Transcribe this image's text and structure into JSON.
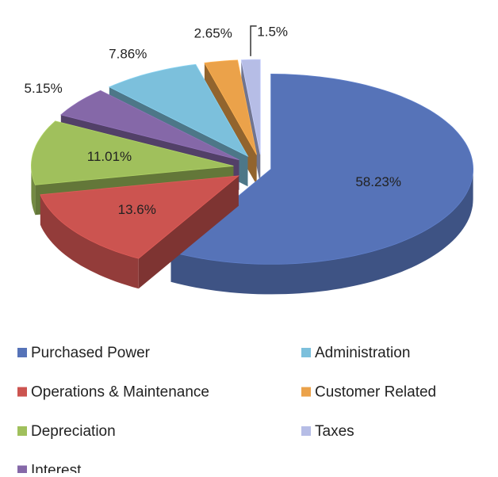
{
  "chart_data": {
    "type": "pie",
    "categories": [
      "Purchased Power",
      "Operations & Maintenance",
      "Depreciation",
      "Interest",
      "Administration",
      "Customer Related",
      "Taxes"
    ],
    "values": [
      58.23,
      13.6,
      11.01,
      5.15,
      7.86,
      2.65,
      1.5
    ],
    "value_labels": [
      "58.23%",
      "13.6%",
      "11.01%",
      "5.15%",
      "7.86%",
      "2.65%",
      "1.5%"
    ],
    "colors": [
      "#5673b8",
      "#cc5450",
      "#a0c05c",
      "#8568a8",
      "#7cc0dc",
      "#eba24a",
      "#b6bde6"
    ],
    "exploded": true,
    "legend": "bottom"
  }
}
